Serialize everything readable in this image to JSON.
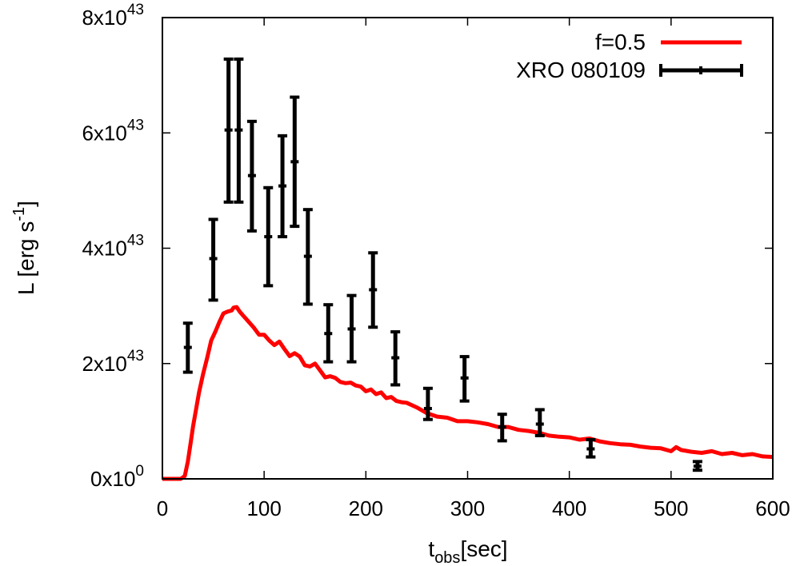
{
  "chart_data": {
    "type": "line",
    "xlabel": {
      "base": "t",
      "sub": "obs",
      "rest": "[sec]"
    },
    "ylabel": {
      "base": "L [erg s",
      "sup": "-1",
      "rest": "]"
    },
    "xlim": [
      0,
      600
    ],
    "ylim": [
      0,
      8e+43
    ],
    "x_ticks": [
      {
        "value": 0,
        "label": "0"
      },
      {
        "value": 100,
        "label": "100"
      },
      {
        "value": 200,
        "label": "200"
      },
      {
        "value": 300,
        "label": "300"
      },
      {
        "value": 400,
        "label": "400"
      },
      {
        "value": 500,
        "label": "500"
      },
      {
        "value": 600,
        "label": "600"
      }
    ],
    "y_ticks": [
      {
        "value": 0,
        "mantissa": "0x10",
        "exp": "0"
      },
      {
        "value": 2e+43,
        "mantissa": "2x10",
        "exp": "43"
      },
      {
        "value": 4e+43,
        "mantissa": "4x10",
        "exp": "43"
      },
      {
        "value": 6e+43,
        "mantissa": "6x10",
        "exp": "43"
      },
      {
        "value": 8e+43,
        "mantissa": "8x10",
        "exp": "43"
      }
    ],
    "legend_position": "top-right",
    "series": [
      {
        "name": "f=0.5",
        "kind": "line",
        "color": "#ff0000",
        "x": [
          0,
          10,
          18,
          22,
          25,
          28,
          30,
          33,
          36,
          40,
          44,
          48,
          52,
          56,
          60,
          64,
          68,
          70,
          73,
          76,
          80,
          85,
          90,
          95,
          100,
          105,
          110,
          115,
          120,
          125,
          130,
          135,
          140,
          145,
          150,
          155,
          160,
          165,
          170,
          175,
          180,
          185,
          190,
          195,
          200,
          205,
          210,
          215,
          220,
          225,
          230,
          235,
          240,
          250,
          260,
          270,
          280,
          290,
          300,
          310,
          320,
          330,
          340,
          350,
          360,
          370,
          380,
          390,
          400,
          410,
          420,
          430,
          440,
          450,
          460,
          470,
          480,
          490,
          500,
          505,
          510,
          520,
          530,
          540,
          550,
          560,
          570,
          580,
          590,
          600
        ],
        "y": [
          0,
          0,
          0,
          5e+41,
          3e+42,
          6.5e+42,
          9e+42,
          1.2e+43,
          1.5e+43,
          1.82e+43,
          2.1e+43,
          2.4e+43,
          2.55e+43,
          2.72e+43,
          2.87e+43,
          2.9e+43,
          2.92e+43,
          2.97e+43,
          2.98e+43,
          2.9e+43,
          2.82e+43,
          2.72e+43,
          2.62e+43,
          2.5e+43,
          2.5e+43,
          2.4e+43,
          2.32e+43,
          2.38e+43,
          2.25e+43,
          2.13e+43,
          2.18e+43,
          2.12e+43,
          1.97e+43,
          1.95e+43,
          2e+43,
          1.88e+43,
          1.76e+43,
          1.78e+43,
          1.75e+43,
          1.68e+43,
          1.66e+43,
          1.67e+43,
          1.62e+43,
          1.6e+43,
          1.52e+43,
          1.55e+43,
          1.47e+43,
          1.5e+43,
          1.4e+43,
          1.42e+43,
          1.35e+43,
          1.33e+43,
          1.32e+43,
          1.24e+43,
          1.14e+43,
          1.08e+43,
          1.06e+43,
          1e+43,
          1e+43,
          9.8e+42,
          9.5e+42,
          9e+42,
          9e+42,
          8.5e+42,
          8.3e+42,
          8e+42,
          7.5e+42,
          7.3e+42,
          7.2e+42,
          6.8e+42,
          7e+42,
          6.5e+42,
          6.2e+42,
          6e+42,
          5.9e+42,
          5.6e+42,
          5.4e+42,
          5.3e+42,
          4.8e+42,
          5.5e+42,
          5e+42,
          4.7e+42,
          4.5e+42,
          4.8e+42,
          4.3e+42,
          4.5e+42,
          4.1e+42,
          4.3e+42,
          3.9e+42,
          3.8e+42
        ]
      },
      {
        "name": "XRO 080109",
        "kind": "errorbar",
        "color": "#000000",
        "points": [
          {
            "x": 25,
            "y": 2.28e+43,
            "lo": 1.85e+43,
            "hi": 2.7e+43
          },
          {
            "x": 50,
            "y": 3.82e+43,
            "lo": 3.1e+43,
            "hi": 4.5e+43
          },
          {
            "x": 65,
            "y": 6.05e+43,
            "lo": 4.8e+43,
            "hi": 7.28e+43
          },
          {
            "x": 75,
            "y": 6.05e+43,
            "lo": 4.8e+43,
            "hi": 7.28e+43
          },
          {
            "x": 88,
            "y": 5.26e+43,
            "lo": 4.3e+43,
            "hi": 6.2e+43
          },
          {
            "x": 104,
            "y": 4.2e+43,
            "lo": 3.35e+43,
            "hi": 5.05e+43
          },
          {
            "x": 118,
            "y": 5.08e+43,
            "lo": 4.2e+43,
            "hi": 5.95e+43
          },
          {
            "x": 130,
            "y": 5.5e+43,
            "lo": 4.38e+43,
            "hi": 6.62e+43
          },
          {
            "x": 143,
            "y": 3.86e+43,
            "lo": 3.03e+43,
            "hi": 4.67e+43
          },
          {
            "x": 163,
            "y": 2.52e+43,
            "lo": 2.03e+43,
            "hi": 3.02e+43
          },
          {
            "x": 186,
            "y": 2.6e+43,
            "lo": 2.03e+43,
            "hi": 3.18e+43
          },
          {
            "x": 207,
            "y": 3.28e+43,
            "lo": 2.63e+43,
            "hi": 3.92e+43
          },
          {
            "x": 229,
            "y": 2.1e+43,
            "lo": 1.63e+43,
            "hi": 2.55e+43
          },
          {
            "x": 261,
            "y": 1.22e+43,
            "lo": 1.03e+43,
            "hi": 1.57e+43
          },
          {
            "x": 297,
            "y": 1.75e+43,
            "lo": 1.35e+43,
            "hi": 2.12e+43
          },
          {
            "x": 334,
            "y": 9e+42,
            "lo": 6.6e+42,
            "hi": 1.12e+43
          },
          {
            "x": 371,
            "y": 9.5e+42,
            "lo": 7.5e+42,
            "hi": 1.2e+43
          },
          {
            "x": 421,
            "y": 5.2e+42,
            "lo": 3.8e+42,
            "hi": 6.8e+42
          },
          {
            "x": 526,
            "y": 2.2e+42,
            "lo": 1.5e+42,
            "hi": 3e+42
          }
        ]
      }
    ]
  }
}
